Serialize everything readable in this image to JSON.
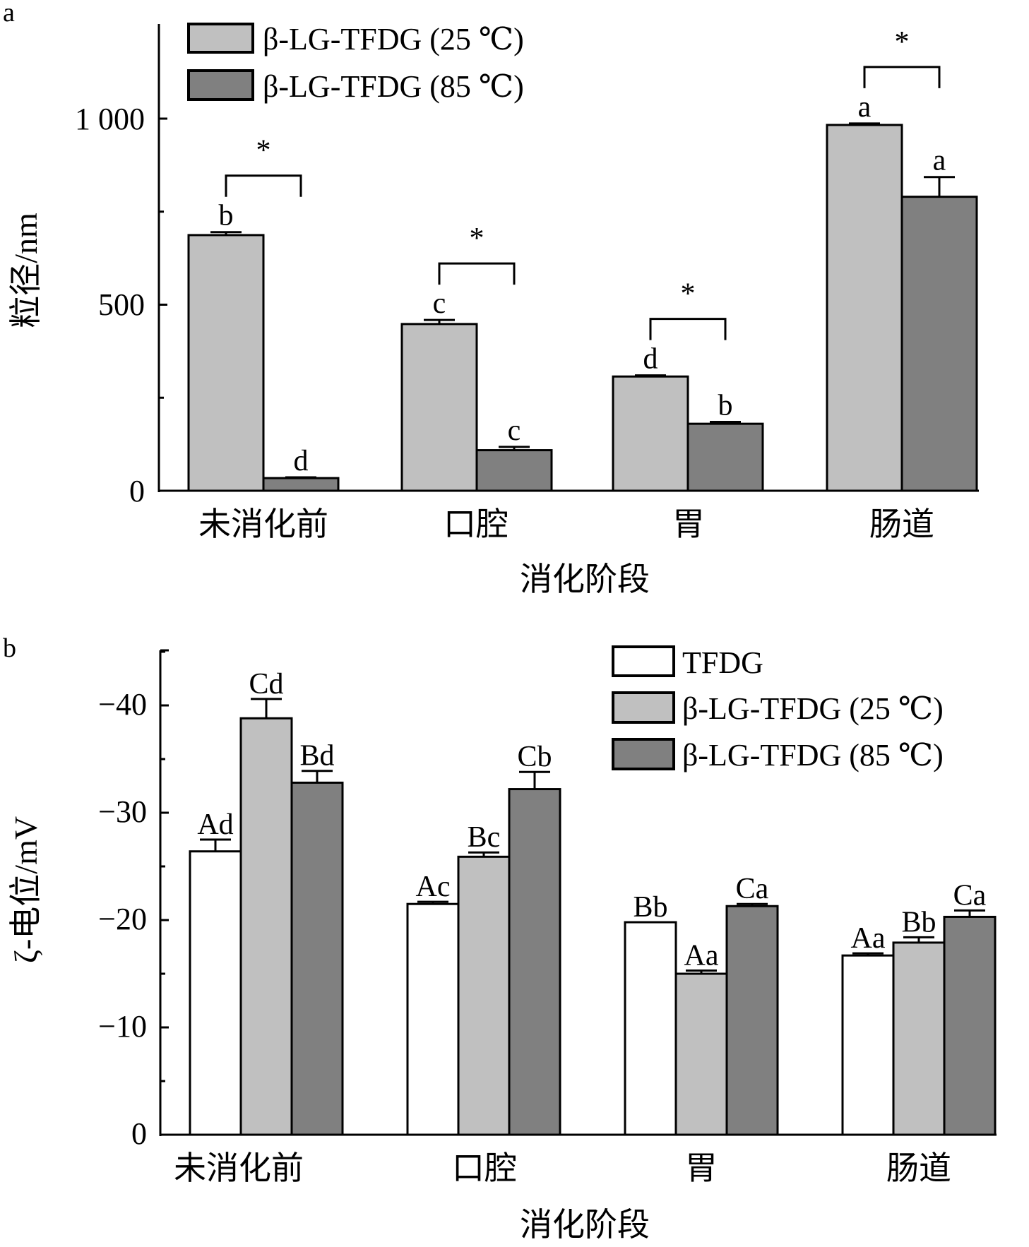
{
  "chart_data": [
    {
      "panel_label": "a",
      "type": "bar",
      "title": "",
      "xlabel": "消化阶段",
      "ylabel": "粒径/nm",
      "ylim": [
        0,
        1250
      ],
      "yticks": [
        0,
        500,
        1000
      ],
      "ytick_labels": [
        "0",
        "500",
        "1 000"
      ],
      "minor_yticks": [
        250,
        750
      ],
      "categories": [
        "未消化前",
        "口腔",
        "胃",
        "肠道"
      ],
      "legend_position": "top-left",
      "series": [
        {
          "name": "β-LG-TFDG (25 ℃)",
          "color": "#c0c0c0",
          "values": [
            687,
            448,
            307,
            983
          ],
          "error": [
            8,
            11,
            3,
            4
          ],
          "letters": [
            "b",
            "c",
            "d",
            "a"
          ]
        },
        {
          "name": "β-LG-TFDG (85 ℃)",
          "color": "#808080",
          "values": [
            34,
            109,
            180,
            790
          ],
          "error": [
            2,
            9,
            5,
            53
          ],
          "letters": [
            "d",
            "c",
            "b",
            "a"
          ]
        }
      ],
      "significance": [
        "*",
        "*",
        "*",
        "*"
      ]
    },
    {
      "panel_label": "b",
      "type": "bar",
      "title": "",
      "xlabel": "消化阶段",
      "ylabel": "ζ-电位/mV",
      "ylim": [
        0,
        -45
      ],
      "yticks": [
        0,
        -10,
        -20,
        -30,
        -40
      ],
      "ytick_labels": [
        "0",
        "−10",
        "−20",
        "−30",
        "−40"
      ],
      "minor_yticks": [
        -5,
        -15,
        -25,
        -35,
        -45
      ],
      "categories": [
        "未消化前",
        "口腔",
        "胃",
        "肠道"
      ],
      "legend_position": "top-right",
      "series": [
        {
          "name": "TFDG",
          "color": "#ffffff",
          "values": [
            -26.4,
            -21.5,
            -19.8,
            -16.7
          ],
          "error": [
            1.1,
            0.2,
            0.0,
            0.2
          ],
          "letters": [
            "Ad",
            "Ac",
            "Bb",
            "Aa"
          ]
        },
        {
          "name": "β-LG-TFDG (25 ℃)",
          "color": "#c0c0c0",
          "values": [
            -38.8,
            -25.9,
            -15.0,
            -17.9
          ],
          "error": [
            1.8,
            0.4,
            0.3,
            0.5
          ],
          "letters": [
            "Cd",
            "Bc",
            "Aa",
            "Bb"
          ]
        },
        {
          "name": "β-LG-TFDG (85 ℃)",
          "color": "#808080",
          "values": [
            -32.8,
            -32.2,
            -21.3,
            -20.3
          ],
          "error": [
            1.1,
            1.6,
            0.2,
            0.6
          ],
          "letters": [
            "Bd",
            "Cb",
            "Ca",
            "Ca"
          ]
        }
      ]
    }
  ]
}
